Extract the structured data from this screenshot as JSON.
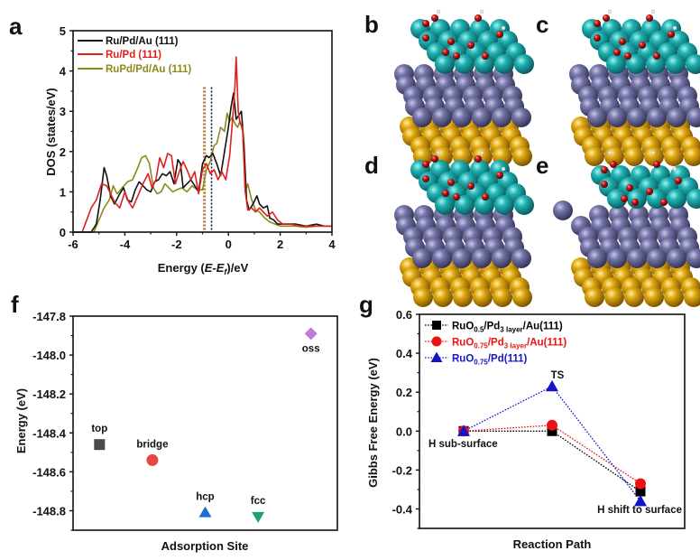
{
  "panels": {
    "a": "a",
    "b": "b",
    "c": "c",
    "d": "d",
    "e": "e",
    "f": "f",
    "g": "g"
  },
  "colors": {
    "black": "#111111",
    "red": "#e02020",
    "olive": "#8a8a1a",
    "ru": "#1aa5a5",
    "pd": "#6b6b9a",
    "au": "#d9a010",
    "o": "#b01818",
    "top": "#4a4a4a",
    "bridge": "#e84545",
    "hcp": "#1a6fd0",
    "fcc": "#1fa070",
    "oss": "#c07ad8",
    "g_black": "#000000",
    "g_red": "#ee1111",
    "g_blue": "#1515c8"
  },
  "chart_data": [
    {
      "type": "line",
      "panel": "a",
      "xlabel_prefix": "Energy (",
      "xlabel_italic": "E-E",
      "xlabel_sub": "f",
      "xlabel_suffix": ")/eV",
      "ylabel": "DOS (states/eV)",
      "xlim": [
        -6,
        4
      ],
      "ylim": [
        0,
        5
      ],
      "xticks": [
        "-6",
        "-4",
        "-2",
        "0",
        "2",
        "4"
      ],
      "xtick_values": [
        -6,
        -4,
        -2,
        0,
        2,
        4
      ],
      "yticks": [
        "0",
        "1",
        "2",
        "3",
        "4",
        "5"
      ],
      "ytick_values": [
        0,
        1,
        2,
        3,
        4,
        5
      ],
      "legend_position": "top-left",
      "series": [
        {
          "name": "Ru/Pd/Au (111)",
          "color_key": "black",
          "d_band_center": -0.65,
          "x": [
            -6,
            -5.3,
            -5.1,
            -4.95,
            -4.8,
            -4.7,
            -4.55,
            -4.4,
            -4.2,
            -4.05,
            -3.9,
            -3.75,
            -3.6,
            -3.45,
            -3.3,
            -3.15,
            -3.0,
            -2.85,
            -2.7,
            -2.55,
            -2.4,
            -2.25,
            -2.1,
            -1.95,
            -1.85,
            -1.75,
            -1.6,
            -1.45,
            -1.3,
            -1.15,
            -1.0,
            -0.85,
            -0.75,
            -0.6,
            -0.45,
            -0.3,
            -0.15,
            0.0,
            0.1,
            0.2,
            0.3,
            0.4,
            0.5,
            0.6,
            0.7,
            0.8,
            0.95,
            1.1,
            1.2,
            1.35,
            1.5,
            1.6,
            1.75,
            1.9,
            2.1,
            2.3,
            2.6,
            3.0,
            3.4,
            3.7,
            4.0
          ],
          "y": [
            0,
            0,
            0.2,
            0.8,
            1.6,
            1.4,
            0.9,
            0.7,
            0.95,
            1.1,
            0.8,
            0.75,
            1.05,
            1.25,
            1.15,
            1.05,
            1.0,
            1.25,
            1.3,
            1.45,
            1.4,
            1.5,
            1.2,
            1.8,
            1.7,
            1.1,
            1.2,
            1.3,
            1.15,
            1.0,
            1.7,
            1.9,
            1.85,
            1.95,
            1.7,
            1.4,
            2.0,
            2.6,
            3.1,
            3.45,
            2.8,
            2.9,
            3.0,
            2.2,
            0.8,
            0.55,
            0.7,
            0.9,
            0.7,
            0.6,
            0.65,
            0.35,
            0.3,
            0.2,
            0.2,
            0.2,
            0.2,
            0.15,
            0.2,
            0.15,
            0.15
          ]
        },
        {
          "name": "Ru/Pd (111)",
          "color_key": "red",
          "d_band_center": -0.95,
          "x": [
            -6,
            -5.65,
            -5.5,
            -5.3,
            -5.1,
            -4.9,
            -4.7,
            -4.55,
            -4.4,
            -4.2,
            -4.0,
            -3.85,
            -3.7,
            -3.5,
            -3.3,
            -3.1,
            -2.95,
            -2.8,
            -2.65,
            -2.5,
            -2.35,
            -2.2,
            -2.05,
            -1.9,
            -1.75,
            -1.6,
            -1.45,
            -1.3,
            -1.15,
            -1.0,
            -0.85,
            -0.7,
            -0.55,
            -0.4,
            -0.25,
            -0.1,
            0.05,
            0.15,
            0.25,
            0.3,
            0.38,
            0.45,
            0.55,
            0.65,
            0.75,
            0.9,
            1.05,
            1.2,
            1.35,
            1.5,
            1.7,
            1.9,
            2.1,
            2.4,
            2.8,
            3.2,
            3.6,
            4.0
          ],
          "y": [
            0,
            0,
            0.25,
            0.6,
            0.8,
            1.2,
            1.15,
            0.95,
            0.75,
            0.6,
            1.0,
            0.75,
            0.6,
            0.9,
            1.2,
            1.45,
            1.1,
            1.3,
            1.85,
            1.6,
            1.95,
            1.9,
            1.2,
            1.5,
            1.75,
            1.55,
            1.3,
            1.5,
            0.95,
            1.55,
            1.7,
            1.45,
            1.55,
            1.3,
            1.5,
            1.3,
            1.9,
            2.7,
            3.6,
            4.35,
            3.0,
            2.7,
            2.6,
            1.0,
            0.55,
            0.6,
            0.5,
            0.6,
            0.5,
            0.4,
            0.5,
            0.3,
            0.2,
            0.2,
            0.15,
            0.15,
            0.15,
            0.15
          ]
        },
        {
          "name": "RuPd/Pd/Au (111)",
          "color_key": "olive",
          "d_band_center": -0.9,
          "x": [
            -6,
            -5.2,
            -5.0,
            -4.8,
            -4.6,
            -4.45,
            -4.3,
            -4.1,
            -3.9,
            -3.7,
            -3.5,
            -3.35,
            -3.2,
            -3.05,
            -2.9,
            -2.75,
            -2.6,
            -2.45,
            -2.3,
            -2.15,
            -2.0,
            -1.8,
            -1.6,
            -1.4,
            -1.2,
            -1.0,
            -0.85,
            -0.7,
            -0.55,
            -0.45,
            -0.3,
            -0.15,
            -0.05,
            0.05,
            0.15,
            0.25,
            0.35,
            0.45,
            0.55,
            0.65,
            0.75,
            0.9,
            1.05,
            1.2,
            1.4,
            1.6,
            1.8,
            2.0,
            2.3,
            2.6,
            3.0,
            3.4,
            3.8,
            4.0
          ],
          "y": [
            0,
            0,
            0.3,
            0.6,
            0.8,
            1.15,
            0.95,
            1.1,
            1.25,
            1.3,
            1.6,
            1.85,
            1.9,
            1.7,
            1.1,
            0.95,
            1.0,
            1.2,
            1.1,
            1.0,
            1.05,
            1.1,
            1.0,
            1.15,
            1.05,
            1.05,
            1.55,
            1.75,
            2.15,
            2.2,
            2.6,
            2.5,
            2.95,
            2.75,
            2.85,
            2.7,
            2.6,
            2.75,
            2.5,
            1.0,
            1.2,
            0.8,
            0.55,
            0.5,
            0.35,
            0.25,
            0.2,
            0.15,
            0.15,
            0.15,
            0.12,
            0.15,
            0.15,
            0.15
          ]
        }
      ]
    },
    {
      "type": "scatter",
      "panel": "f",
      "xlabel": "Adsorption Site",
      "ylabel": "Energy (eV)",
      "ylim": [
        -148.9,
        -147.8
      ],
      "yticks": [
        "-147.8",
        "-148.0",
        "-148.2",
        "-148.4",
        "-148.6",
        "-148.8"
      ],
      "ytick_values": [
        -147.8,
        -148.0,
        -148.2,
        -148.4,
        -148.6,
        -148.8
      ],
      "points": [
        {
          "label": "top",
          "x": 1,
          "y": -148.46,
          "marker": "square",
          "color_key": "top"
        },
        {
          "label": "bridge",
          "x": 2,
          "y": -148.54,
          "marker": "circle",
          "color_key": "bridge"
        },
        {
          "label": "hcp",
          "x": 3,
          "y": -148.81,
          "marker": "triangle-up",
          "color_key": "hcp"
        },
        {
          "label": "fcc",
          "x": 4,
          "y": -148.83,
          "marker": "triangle-down",
          "color_key": "fcc"
        },
        {
          "label": "oss",
          "x": 5,
          "y": -147.89,
          "marker": "diamond",
          "color_key": "oss"
        }
      ],
      "xlim": [
        0.5,
        5.5
      ]
    },
    {
      "type": "line",
      "panel": "g",
      "xlabel": "Reaction Path",
      "ylabel": "Gibbs Free Energy (eV)",
      "ylim": [
        -0.5,
        0.6
      ],
      "yticks": [
        "0.6",
        "0.4",
        "0.2",
        "0.0",
        "-0.2",
        "-0.4"
      ],
      "ytick_values": [
        0.6,
        0.4,
        0.2,
        0.0,
        -0.2,
        -0.4
      ],
      "xlim": [
        0.5,
        3.5
      ],
      "categories": [
        "H sub-surface",
        "TS",
        "H shift to surface"
      ],
      "legend_position": "top-left",
      "series": [
        {
          "name_main": "RuO",
          "name_sub1": "0.5",
          "name_mid": "/Pd",
          "name_sub2": "3 layer",
          "name_end": "/Au(111)",
          "marker": "square",
          "color_key": "g_black",
          "values": [
            0.0,
            0.0,
            -0.31
          ]
        },
        {
          "name_main": "RuO",
          "name_sub1": "0.75",
          "name_mid": "/Pd",
          "name_sub2": "3 layer",
          "name_end": "/Au(111)",
          "marker": "circle",
          "color_key": "g_red",
          "values": [
            0.0,
            0.03,
            -0.27
          ]
        },
        {
          "name_main": "RuO",
          "name_sub1": "0.75",
          "name_mid": "/Pd(111)",
          "name_sub2": "",
          "name_end": "",
          "marker": "triangle-up",
          "color_key": "g_blue",
          "values": [
            0.0,
            0.23,
            -0.36
          ]
        }
      ]
    }
  ]
}
